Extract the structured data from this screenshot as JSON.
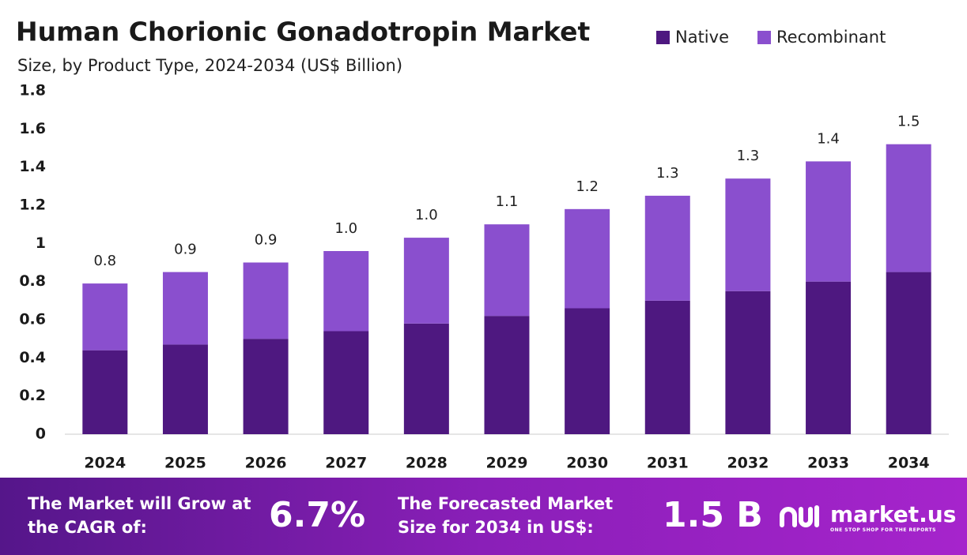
{
  "chart_data": {
    "type": "stacked-bar",
    "title": "Human Chorionic Gonadotropin Market",
    "subtitle": "Size, by Product Type, 2024-2034 (US$ Billion)",
    "categories": [
      "2024",
      "2025",
      "2026",
      "2027",
      "2028",
      "2029",
      "2030",
      "2031",
      "2032",
      "2033",
      "2034"
    ],
    "series": [
      {
        "name": "Native",
        "color": "#4e1880",
        "values": [
          0.44,
          0.47,
          0.5,
          0.54,
          0.58,
          0.62,
          0.66,
          0.7,
          0.75,
          0.8,
          0.85
        ]
      },
      {
        "name": "Recombinant",
        "color": "#8a4fce",
        "values": [
          0.35,
          0.38,
          0.4,
          0.42,
          0.45,
          0.48,
          0.52,
          0.55,
          0.59,
          0.63,
          0.67
        ]
      }
    ],
    "total_labels": [
      "0.8",
      "0.9",
      "0.9",
      "1.0",
      "1.0",
      "1.1",
      "1.2",
      "1.3",
      "1.3",
      "1.4",
      "1.5"
    ],
    "ylim": [
      0,
      1.8
    ],
    "yticks": [
      0,
      0.2,
      0.4,
      0.6,
      0.8,
      1,
      1.2,
      1.4,
      1.6,
      1.8
    ],
    "grid": false
  },
  "footer": {
    "cagr_text": "The Market will Grow at the CAGR of:",
    "cagr_value": "6.7%",
    "forecast_text": "The Forecasted Market Size for 2034 in US$:",
    "forecast_value": "1.5 B",
    "brand": "market.us",
    "tagline": "ONE STOP SHOP FOR THE REPORTS"
  }
}
